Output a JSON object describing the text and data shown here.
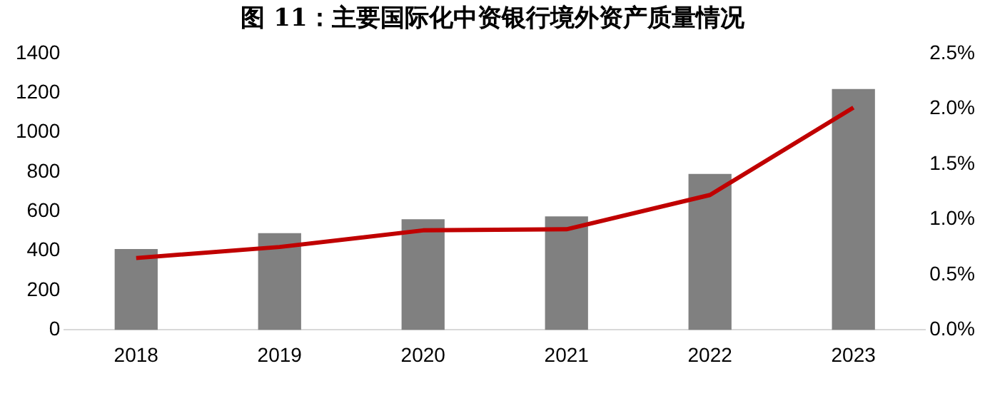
{
  "chart_data": {
    "type": "bar",
    "title": "图 11：主要国际化中资银行境外资产质量情况",
    "categories": [
      "2018",
      "2019",
      "2020",
      "2021",
      "2022",
      "2023"
    ],
    "series": [
      {
        "color": "#808080",
        "values": [
          410,
          490,
          560,
          575,
          790,
          1220
        ]
      },
      {
        "type": "line",
        "axis": "y2",
        "color": "#c00000",
        "values": [
          0.65,
          0.75,
          0.9,
          0.91,
          1.22,
          2.01
        ]
      }
    ],
    "ylim": [
      0,
      1400
    ],
    "yticks": [
      0,
      200,
      400,
      600,
      800,
      1000,
      1200,
      1400
    ],
    "y2lim": [
      0,
      2.5
    ],
    "y2ticks": [
      {
        "value": 0,
        "label": "0.0%"
      },
      {
        "value": 0.5,
        "label": "0.5%"
      },
      {
        "value": 1,
        "label": "1.0%"
      },
      {
        "value": 1.5,
        "label": "1.5%"
      },
      {
        "value": 2,
        "label": "2.0%"
      },
      {
        "value": 2.5,
        "label": "2.5%"
      }
    ],
    "grid": false,
    "legend": false,
    "marker": "none"
  }
}
